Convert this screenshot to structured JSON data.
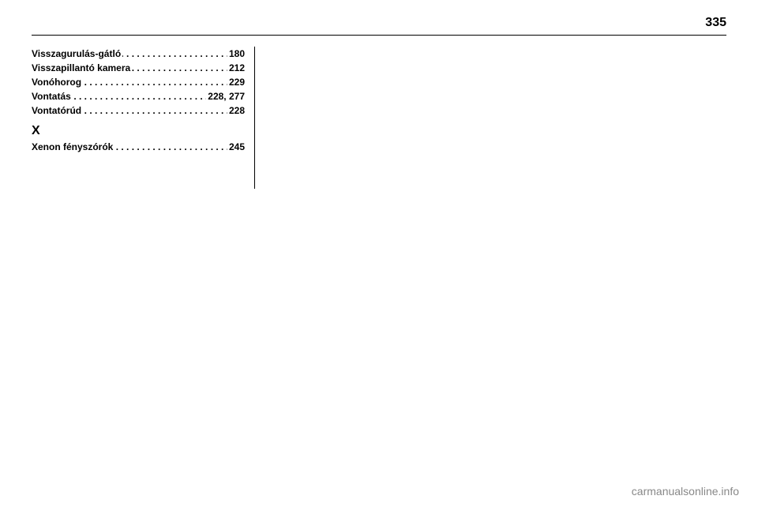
{
  "page_number": "335",
  "index": {
    "entries": [
      {
        "term": "Visszagurulás-gátló",
        "pages": "180"
      },
      {
        "term": "Visszapillantó kamera",
        "pages": "212"
      },
      {
        "term": "Vonóhorog",
        "pages": "229"
      },
      {
        "term": "Vontatás",
        "pages": "228, 277"
      },
      {
        "term": "Vontatórúd",
        "pages": "228"
      }
    ],
    "section_x": {
      "heading": "X",
      "entries": [
        {
          "term": "Xenon fényszórók",
          "pages": "245"
        }
      ]
    }
  },
  "watermark": "carmanualsonline.info",
  "colors": {
    "background": "#ffffff",
    "text": "#000000",
    "rule": "#000000",
    "watermark": "#9e9e9e"
  },
  "font_sizes": {
    "page_number": 16,
    "entry": 12,
    "section_head": 16,
    "watermark": 14
  }
}
